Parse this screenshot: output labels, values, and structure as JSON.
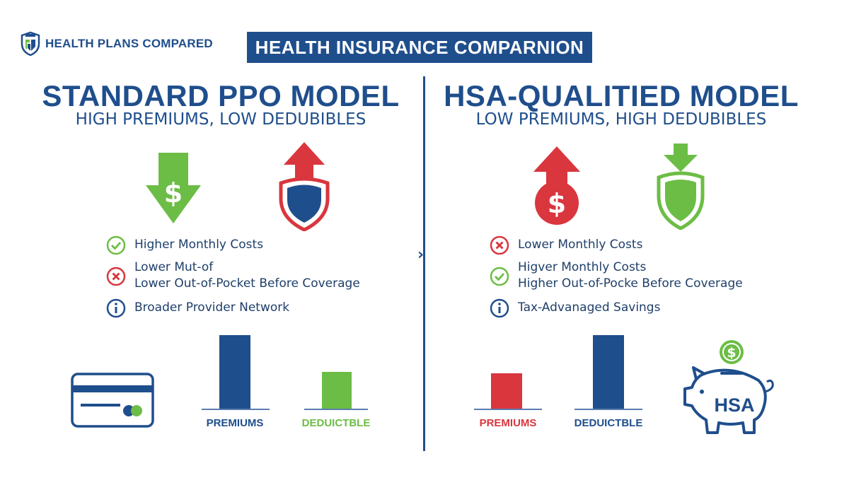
{
  "header": {
    "logo_text": "HEALTH PLANS COMPARED",
    "banner_title": "HEALTH INSURANCE COMPARNION"
  },
  "left_panel": {
    "title": "STANDARD PPO MODEL",
    "subtitle": "HIGH PREMIUMS, LOW DEDUBIBLES",
    "features": [
      {
        "icon": "check-circle-icon",
        "lines": [
          "Higher Monthly Costs"
        ]
      },
      {
        "icon": "x-circle-icon",
        "lines": [
          "Lower Mut-of",
          "Lower Out-of-Pocket Before Coverage"
        ]
      },
      {
        "icon": "info-circle-icon",
        "lines": [
          "Broader Provider Network"
        ]
      }
    ],
    "bars": [
      {
        "label": "PREMIUMS",
        "value": 100,
        "color": "#1f4e8c"
      },
      {
        "label": "DEDUICTBLE",
        "value": 50,
        "color": "#6cbd45"
      }
    ]
  },
  "right_panel": {
    "title": "HSA-QUALITIED MODEL",
    "subtitle": "LOW PREMIUMS, HIGH DEDUBIBLES",
    "features": [
      {
        "icon": "x-circle-icon",
        "lines": [
          "Lower Monthly Costs"
        ]
      },
      {
        "icon": "check-circle-icon",
        "lines": [
          "Higver Monthly Costs",
          "Higher Out-of-Pocke Before Coverage"
        ]
      },
      {
        "icon": "info-circle-icon",
        "lines": [
          "Tax-Advanaged Savings"
        ]
      }
    ],
    "bars": [
      {
        "label": "PREMIUMS",
        "value": 48,
        "color": "#d9363e"
      },
      {
        "label": "DEDUICTBLE",
        "value": 100,
        "color": "#1f4e8c"
      }
    ],
    "piggy_text": "HSA"
  },
  "colors": {
    "blue": "#1f4e8c",
    "green": "#6cbd45",
    "red": "#d9363e"
  }
}
